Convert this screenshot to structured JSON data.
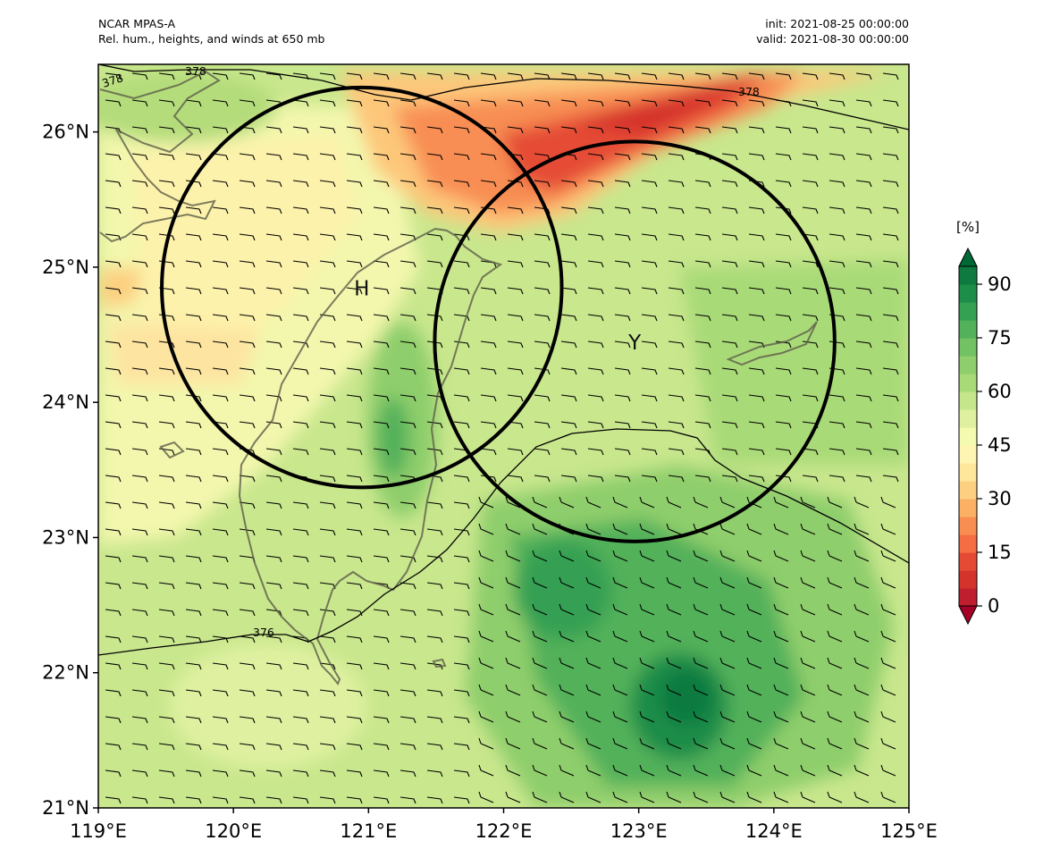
{
  "header": {
    "left_line1": "NCAR MPAS-A",
    "left_line2": "Rel. hum., heights, and winds at 650 mb",
    "right_line1": "init: 2021-08-25 00:00:00",
    "right_line2": "valid: 2021-08-30 00:00:00"
  },
  "map": {
    "lon_range": [
      119,
      125
    ],
    "lat_range": [
      21,
      26.5
    ],
    "x_ticks": [
      "119°E",
      "120°E",
      "121°E",
      "122°E",
      "123°E",
      "124°E",
      "125°E"
    ],
    "y_ticks": [
      "21°N",
      "22°N",
      "23°N",
      "24°N",
      "25°N",
      "26°N"
    ],
    "height_contour_labels": [
      "378",
      "378",
      "378",
      "376"
    ],
    "markers": [
      {
        "label": "H",
        "lon": 120.95,
        "lat": 24.85,
        "circle_radius_deg": 1.48
      },
      {
        "label": "Y",
        "lon": 122.97,
        "lat": 24.45,
        "circle_radius_deg": 1.48
      }
    ],
    "fill_field": "Relative humidity (%)",
    "wind_field": "Wind barbs at 650 mb"
  },
  "colorbar": {
    "unit": "[%]",
    "ticks": [
      "0",
      "15",
      "30",
      "45",
      "60",
      "75",
      "90"
    ],
    "levels": [
      0,
      5,
      10,
      15,
      20,
      25,
      30,
      35,
      40,
      45,
      50,
      55,
      60,
      65,
      70,
      75,
      80,
      85,
      90,
      95
    ],
    "colors": [
      "#be1e2d",
      "#d4332b",
      "#e54b34",
      "#f46d43",
      "#f88e52",
      "#fbb064",
      "#fdcf80",
      "#fee79b",
      "#fff5b3",
      "#f4fab0",
      "#dff1a0",
      "#c5e68a",
      "#a9da78",
      "#8fce6c",
      "#72c163",
      "#52b15a",
      "#34a052",
      "#1d8d4a",
      "#0e7a40"
    ],
    "extend_low": "#a50026",
    "extend_high": "#006837"
  }
}
